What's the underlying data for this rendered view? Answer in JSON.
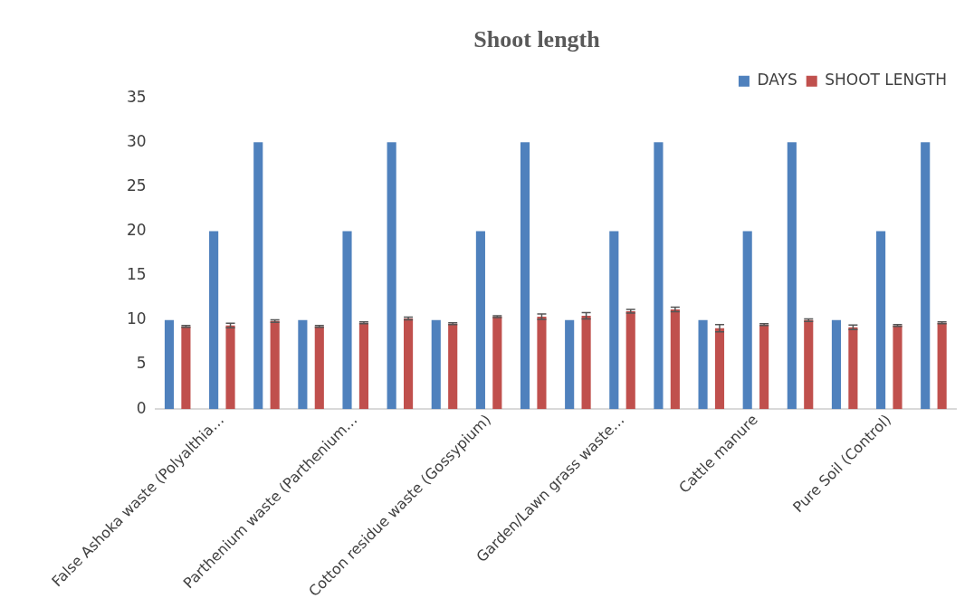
{
  "chart_data": {
    "type": "bar",
    "title": "Shoot length",
    "categories": [
      null,
      "False Ashoka waste (Polyalthia…",
      null,
      null,
      "Parthenium waste (Parthenium…",
      null,
      null,
      "Cotton residue waste (Gossypium)",
      null,
      null,
      "Garden/Lawn grass waste…",
      null,
      null,
      "Cattle manure",
      null,
      null,
      "Pure Soil (Control)",
      null
    ],
    "series": [
      {
        "name": "DAYS",
        "color": "#4f81bd",
        "values": [
          10,
          20,
          30,
          10,
          20,
          30,
          10,
          20,
          30,
          10,
          20,
          30,
          10,
          20,
          30,
          10,
          20,
          30
        ]
      },
      {
        "name": "SHOOT LENGTH",
        "color": "#c0504d",
        "values": [
          9.3,
          9.4,
          9.9,
          9.3,
          9.7,
          10.2,
          9.6,
          10.4,
          10.4,
          10.5,
          11.0,
          11.2,
          9.1,
          9.5,
          10.0,
          9.2,
          9.4,
          9.7
        ],
        "errors": [
          0.1,
          0.25,
          0.15,
          0.1,
          0.1,
          0.15,
          0.1,
          0.1,
          0.3,
          0.35,
          0.2,
          0.25,
          0.4,
          0.1,
          0.15,
          0.25,
          0.1,
          0.1
        ]
      }
    ],
    "ylim": [
      0,
      35
    ],
    "yticks": [
      0,
      5,
      10,
      15,
      20,
      25,
      30,
      35
    ],
    "grid": false,
    "legend": "top right"
  }
}
